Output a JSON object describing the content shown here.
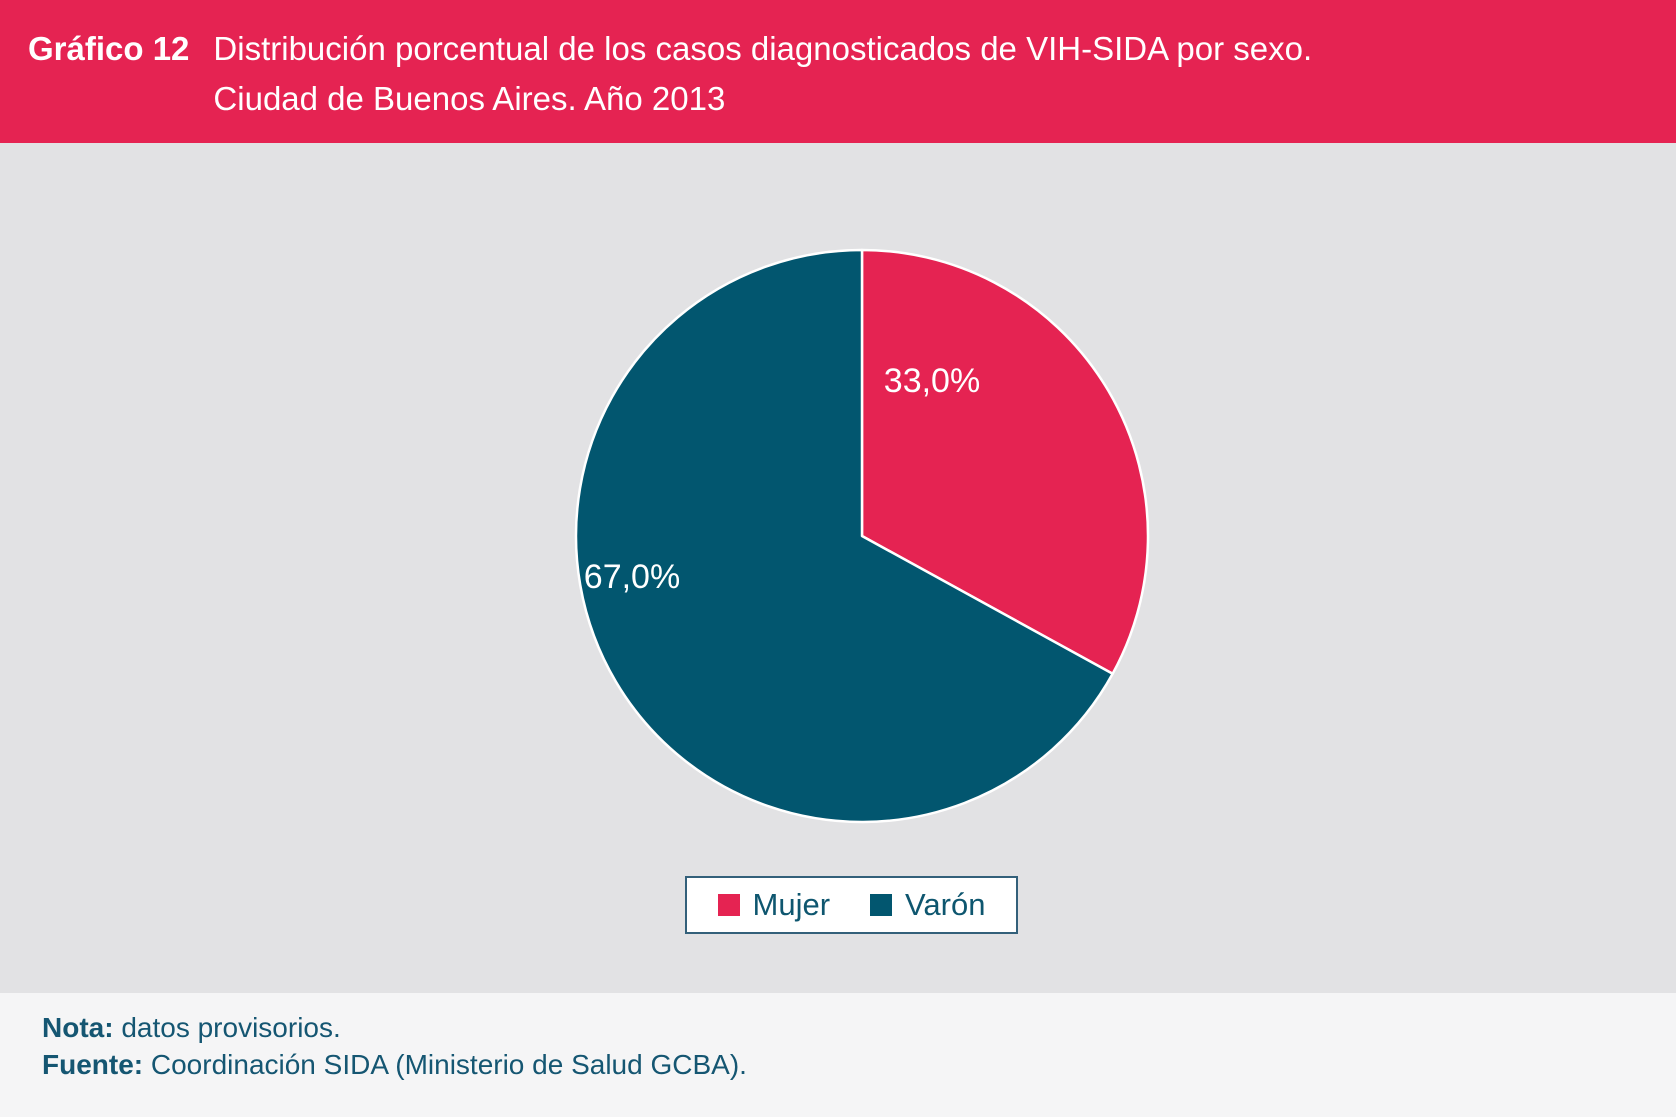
{
  "header": {
    "graf_label": "Gráfico 12",
    "title_line1": "Distribución porcentual de los casos diagnosticados de VIH-SIDA por sexo.",
    "title_line2": "Ciudad de Buenos Aires. Año 2013"
  },
  "chart_data": {
    "type": "pie",
    "title": "Distribución porcentual de los casos diagnosticados de VIH-SIDA por sexo. Ciudad de Buenos Aires. Año 2013",
    "start_angle_deg": 0,
    "direction": "clockwise",
    "legend_position": "bottom",
    "slices": [
      {
        "label": "Mujer",
        "value": 33.0,
        "display": "33,0%",
        "color": "#e52352"
      },
      {
        "label": "Varón",
        "value": 67.0,
        "display": "67,0%",
        "color": "#02566f"
      }
    ]
  },
  "footer": {
    "note_label": "Nota:",
    "note_text": " datos provisorios.",
    "source_label": "Fuente:",
    "source_text": " Coordinación SIDA (Ministerio de Salud GCBA)."
  },
  "colors": {
    "header_bg": "#e52352",
    "chart_bg": "#e2e2e4",
    "footer_bg": "#f5f5f6",
    "text_teal": "#155672",
    "slice_outline": "#ffffff",
    "legend_border": "#33607a"
  }
}
